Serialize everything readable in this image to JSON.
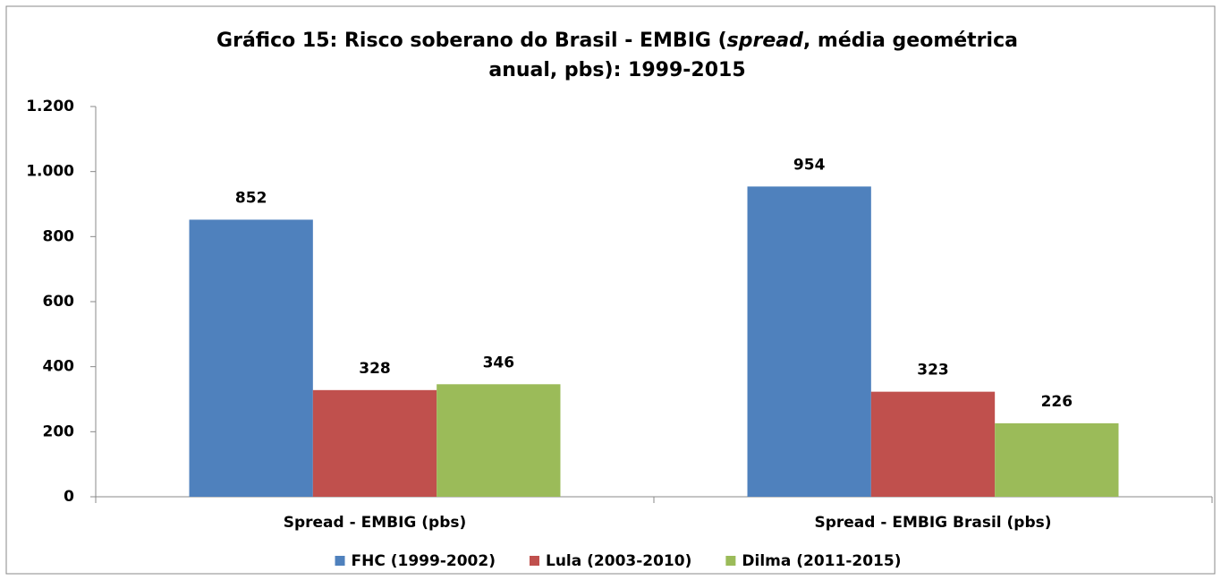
{
  "chart_data": {
    "type": "bar",
    "title_parts": [
      "Gráfico 15: Risco soberano do Brasil - EMBIG (",
      "spread",
      ", média geométrica",
      "anual, pbs): 1999-2015"
    ],
    "categories": [
      "Spread - EMBIG (pbs)",
      "Spread - EMBIG Brasil (pbs)"
    ],
    "series": [
      {
        "name": "FHC (1999-2002)",
        "color": "#4f81bd",
        "values": [
          852,
          954
        ]
      },
      {
        "name": "Lula (2003-2010)",
        "color": "#c0504d",
        "values": [
          328,
          323
        ]
      },
      {
        "name": "Dilma (2011-2015)",
        "color": "#9bbb59",
        "values": [
          346,
          226
        ]
      }
    ],
    "ylim": [
      0,
      1200
    ],
    "yticks": [
      0,
      200,
      400,
      600,
      800,
      {
        "value": 1000,
        "label": "1.000"
      },
      {
        "value": 1200,
        "label": "1.200"
      }
    ],
    "grid": false,
    "legend": "bottom"
  }
}
